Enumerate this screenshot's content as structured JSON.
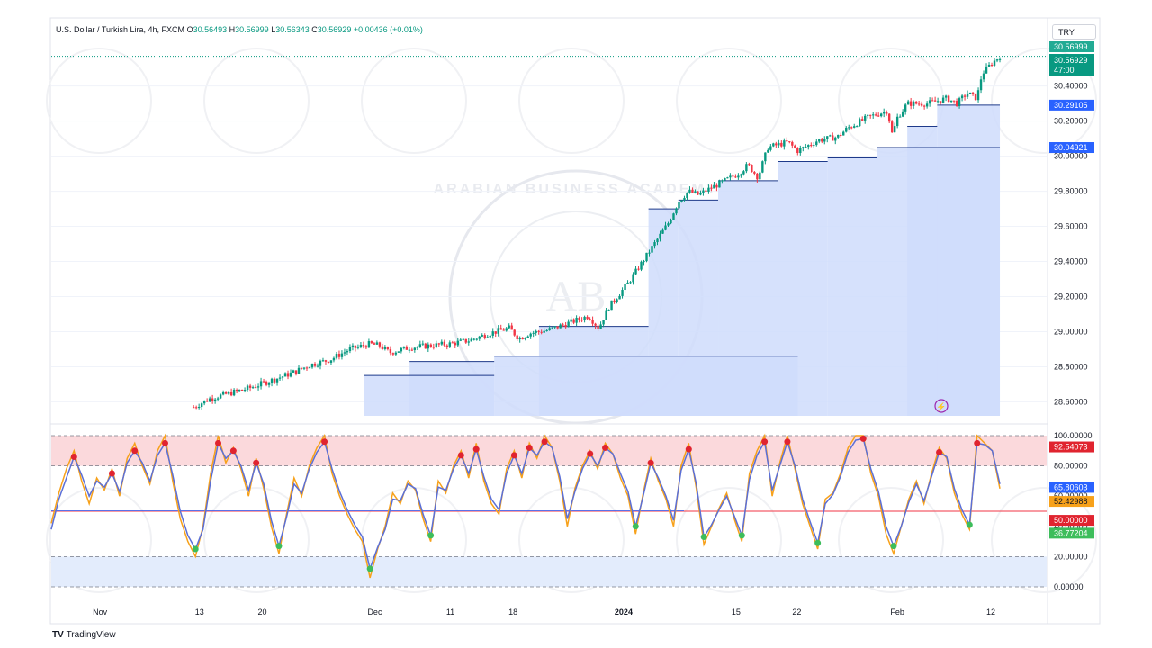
{
  "header": {
    "symbol": "U.S. Dollar / Turkish Lira, 4h, FXCM",
    "o_label": "O",
    "o_value": "30.56493",
    "h_label": "H",
    "h_value": "30.56999",
    "l_label": "L",
    "l_value": "30.56343",
    "c_label": "C",
    "c_value": "30.56929",
    "change": "+0.00436 (+0.01%)"
  },
  "currency_button": "TRY",
  "branding": {
    "logo": "TV",
    "name": "TradingView"
  },
  "watermark_text": "ARABIAN BUSINESS ACADEMY",
  "colors": {
    "up": "#089981",
    "down": "#f23645",
    "fill": "#cfdcfb",
    "rsi_blue": "#5b6fd6",
    "rsi_orange": "#f7a11a",
    "overbought_zone": "#fbd9dc",
    "oversold_zone": "#e3ecfc"
  },
  "chart_data": [
    {
      "type": "candlestick",
      "title": "U.S. Dollar / Turkish Lira, 4h, FXCM",
      "x_tick_labels": [
        "Nov",
        "13",
        "20",
        "Dec",
        "11",
        "18",
        "2024",
        "15",
        "22",
        "Feb",
        "12"
      ],
      "y_range": [
        28.52,
        30.66
      ],
      "y_tick_labels": [
        "28.60000",
        "28.80000",
        "29.00000",
        "29.20000",
        "29.40000",
        "29.60000",
        "29.80000",
        "30.00000",
        "30.20000",
        "30.40000"
      ],
      "price_path": [
        [
          0.143,
          28.57
        ],
        [
          0.16,
          28.62
        ],
        [
          0.2,
          28.68
        ],
        [
          0.24,
          28.76
        ],
        [
          0.26,
          28.81
        ],
        [
          0.28,
          28.84
        ],
        [
          0.3,
          28.9
        ],
        [
          0.32,
          28.93
        ],
        [
          0.33,
          28.92
        ],
        [
          0.34,
          28.88
        ],
        [
          0.36,
          28.91
        ],
        [
          0.38,
          28.92
        ],
        [
          0.4,
          28.93
        ],
        [
          0.42,
          28.95
        ],
        [
          0.44,
          28.99
        ],
        [
          0.46,
          29.02
        ],
        [
          0.47,
          28.96
        ],
        [
          0.48,
          28.99
        ],
        [
          0.5,
          29.01
        ],
        [
          0.52,
          29.05
        ],
        [
          0.54,
          29.09
        ],
        [
          0.55,
          29.02
        ],
        [
          0.56,
          29.14
        ],
        [
          0.58,
          29.28
        ],
        [
          0.6,
          29.45
        ],
        [
          0.62,
          29.62
        ],
        [
          0.63,
          29.74
        ],
        [
          0.64,
          29.8
        ],
        [
          0.65,
          29.78
        ],
        [
          0.67,
          29.84
        ],
        [
          0.69,
          29.9
        ],
        [
          0.7,
          29.95
        ],
        [
          0.71,
          29.88
        ],
        [
          0.72,
          30.05
        ],
        [
          0.74,
          30.08
        ],
        [
          0.75,
          30.03
        ],
        [
          0.77,
          30.09
        ],
        [
          0.79,
          30.11
        ],
        [
          0.8,
          30.16
        ],
        [
          0.82,
          30.22
        ],
        [
          0.84,
          30.26
        ],
        [
          0.845,
          30.12
        ],
        [
          0.85,
          30.22
        ],
        [
          0.86,
          30.3
        ],
        [
          0.88,
          30.3
        ],
        [
          0.9,
          30.33
        ],
        [
          0.91,
          30.3
        ],
        [
          0.92,
          30.36
        ],
        [
          0.93,
          30.33
        ],
        [
          0.935,
          30.47
        ],
        [
          0.945,
          30.53
        ],
        [
          0.953,
          30.57
        ]
      ],
      "support_levels": [
        {
          "from": 0.314,
          "to": 0.445,
          "price": 28.75
        },
        {
          "from": 0.36,
          "to": 0.445,
          "price": 28.83
        },
        {
          "from": 0.445,
          "to": 0.75,
          "price": 28.86
        },
        {
          "from": 0.49,
          "to": 0.6,
          "price": 29.03
        },
        {
          "from": 0.6,
          "to": 0.63,
          "price": 29.7
        },
        {
          "from": 0.63,
          "to": 0.67,
          "price": 29.75
        },
        {
          "from": 0.67,
          "to": 0.73,
          "price": 29.86
        },
        {
          "from": 0.73,
          "to": 0.78,
          "price": 29.97
        },
        {
          "from": 0.78,
          "to": 0.83,
          "price": 29.99
        },
        {
          "from": 0.83,
          "to": 0.953,
          "price": 30.04921
        },
        {
          "from": 0.86,
          "to": 0.89,
          "price": 30.17
        },
        {
          "from": 0.89,
          "to": 0.953,
          "price": 30.29105
        }
      ],
      "price_labels": [
        {
          "value": "30.56999",
          "kind": "high"
        },
        {
          "value": "30.56929",
          "kind": "last"
        },
        {
          "value": "47:00",
          "kind": "countdown"
        },
        {
          "value": "30.29105",
          "kind": "level"
        },
        {
          "value": "30.04921",
          "kind": "level"
        }
      ]
    },
    {
      "type": "line",
      "title": "",
      "y_range": [
        0,
        100
      ],
      "y_tick_labels": [
        "0.00000",
        "20.00000",
        "40.00000",
        "60.00000",
        "80.00000",
        "100.00000"
      ],
      "bands": {
        "overbought": [
          80,
          100
        ],
        "oversold": [
          0,
          20
        ],
        "midline": 50
      },
      "series": [
        {
          "values": [
            42,
            62,
            78,
            90,
            70,
            55,
            72,
            64,
            78,
            60,
            85,
            95,
            80,
            68,
            90,
            100,
            70,
            45,
            30,
            20,
            40,
            75,
            100,
            82,
            92,
            78,
            60,
            85,
            65,
            40,
            22,
            48,
            72,
            60,
            80,
            92,
            100,
            75,
            60,
            48,
            38,
            30,
            6,
            25,
            40,
            62,
            55,
            70,
            64,
            45,
            30,
            70,
            62,
            80,
            90,
            72,
            95,
            70,
            55,
            48,
            78,
            90,
            72,
            95,
            85,
            100,
            92,
            70,
            40,
            65,
            80,
            90,
            78,
            95,
            88,
            72,
            60,
            35,
            62,
            85,
            70,
            58,
            40,
            80,
            95,
            65,
            28,
            40,
            52,
            62,
            45,
            30,
            75,
            90,
            100,
            60,
            82,
            100,
            78,
            55,
            40,
            25,
            58,
            62,
            75,
            92,
            100,
            100,
            75,
            60,
            35,
            22,
            40,
            58,
            70,
            55,
            75,
            92,
            85,
            62,
            48,
            38,
            100,
            95,
            90,
            65
          ]
        },
        {
          "values": [
            38,
            58,
            72,
            86,
            74,
            60,
            70,
            66,
            75,
            63,
            82,
            90,
            82,
            70,
            87,
            95,
            74,
            50,
            34,
            25,
            38,
            70,
            95,
            85,
            90,
            80,
            64,
            82,
            68,
            44,
            27,
            46,
            68,
            62,
            78,
            89,
            96,
            78,
            63,
            51,
            41,
            33,
            12,
            26,
            38,
            58,
            57,
            68,
            65,
            48,
            34,
            66,
            64,
            78,
            87,
            75,
            91,
            73,
            58,
            51,
            75,
            87,
            75,
            92,
            87,
            96,
            92,
            73,
            45,
            63,
            78,
            88,
            80,
            92,
            88,
            75,
            63,
            40,
            60,
            82,
            72,
            60,
            44,
            77,
            91,
            68,
            33,
            41,
            51,
            60,
            47,
            34,
            71,
            87,
            96,
            64,
            80,
            96,
            80,
            58,
            43,
            29,
            55,
            61,
            73,
            89,
            97,
            98,
            78,
            63,
            40,
            27,
            40,
            56,
            68,
            57,
            73,
            89,
            86,
            65,
            51,
            41,
            95,
            94,
            90,
            68
          ]
        }
      ],
      "last_values": [
        "92.54073",
        "65.80603",
        "52.42988",
        "50.00000",
        "36.77204"
      ]
    }
  ]
}
